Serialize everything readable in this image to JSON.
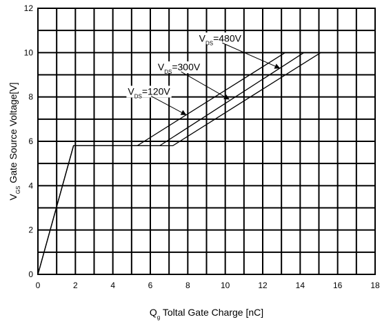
{
  "chart_data": {
    "type": "line",
    "xlabel": {
      "main": "Q",
      "sub": "g",
      "rest": " Toltal Gate Charge [nC]"
    },
    "ylabel": {
      "main": "V",
      "sub": "GS",
      "rest": " Gate Source Voltage[V]"
    },
    "xlim": [
      0,
      18
    ],
    "ylim": [
      0,
      12
    ],
    "x_ticks": [
      "0",
      "2",
      "4",
      "6",
      "8",
      "10",
      "12",
      "14",
      "16",
      "18"
    ],
    "y_ticks": [
      "0",
      "2",
      "4",
      "6",
      "8",
      "10",
      "12"
    ],
    "grid": true,
    "grid_step_x": 1,
    "grid_step_y": 1,
    "series": [
      {
        "name": "VDS=120V",
        "points": [
          [
            0,
            0
          ],
          [
            1.9,
            5.8
          ],
          [
            5.3,
            5.8
          ],
          [
            13.2,
            10
          ]
        ]
      },
      {
        "name": "VDS=300V",
        "points": [
          [
            0,
            0
          ],
          [
            1.9,
            5.8
          ],
          [
            6.5,
            5.8
          ],
          [
            14.2,
            10
          ]
        ]
      },
      {
        "name": "VDS=480V",
        "points": [
          [
            0,
            0
          ],
          [
            1.9,
            5.8
          ],
          [
            7.2,
            5.8
          ],
          [
            15.1,
            10
          ]
        ]
      }
    ],
    "annotations": [
      {
        "series": 0,
        "main": "V",
        "sub": "DS",
        "rest": "=120V",
        "x": 4.8,
        "y": 8.1,
        "arrow_to": [
          7.9,
          7.2
        ]
      },
      {
        "series": 1,
        "main": "V",
        "sub": "DS",
        "rest": "=300V",
        "x": 6.4,
        "y": 9.2,
        "arrow_to": [
          10.2,
          7.9
        ]
      },
      {
        "series": 2,
        "main": "V",
        "sub": "DS",
        "rest": "=480V",
        "x": 8.6,
        "y": 10.5,
        "arrow_to": [
          12.9,
          9.3
        ]
      }
    ]
  }
}
